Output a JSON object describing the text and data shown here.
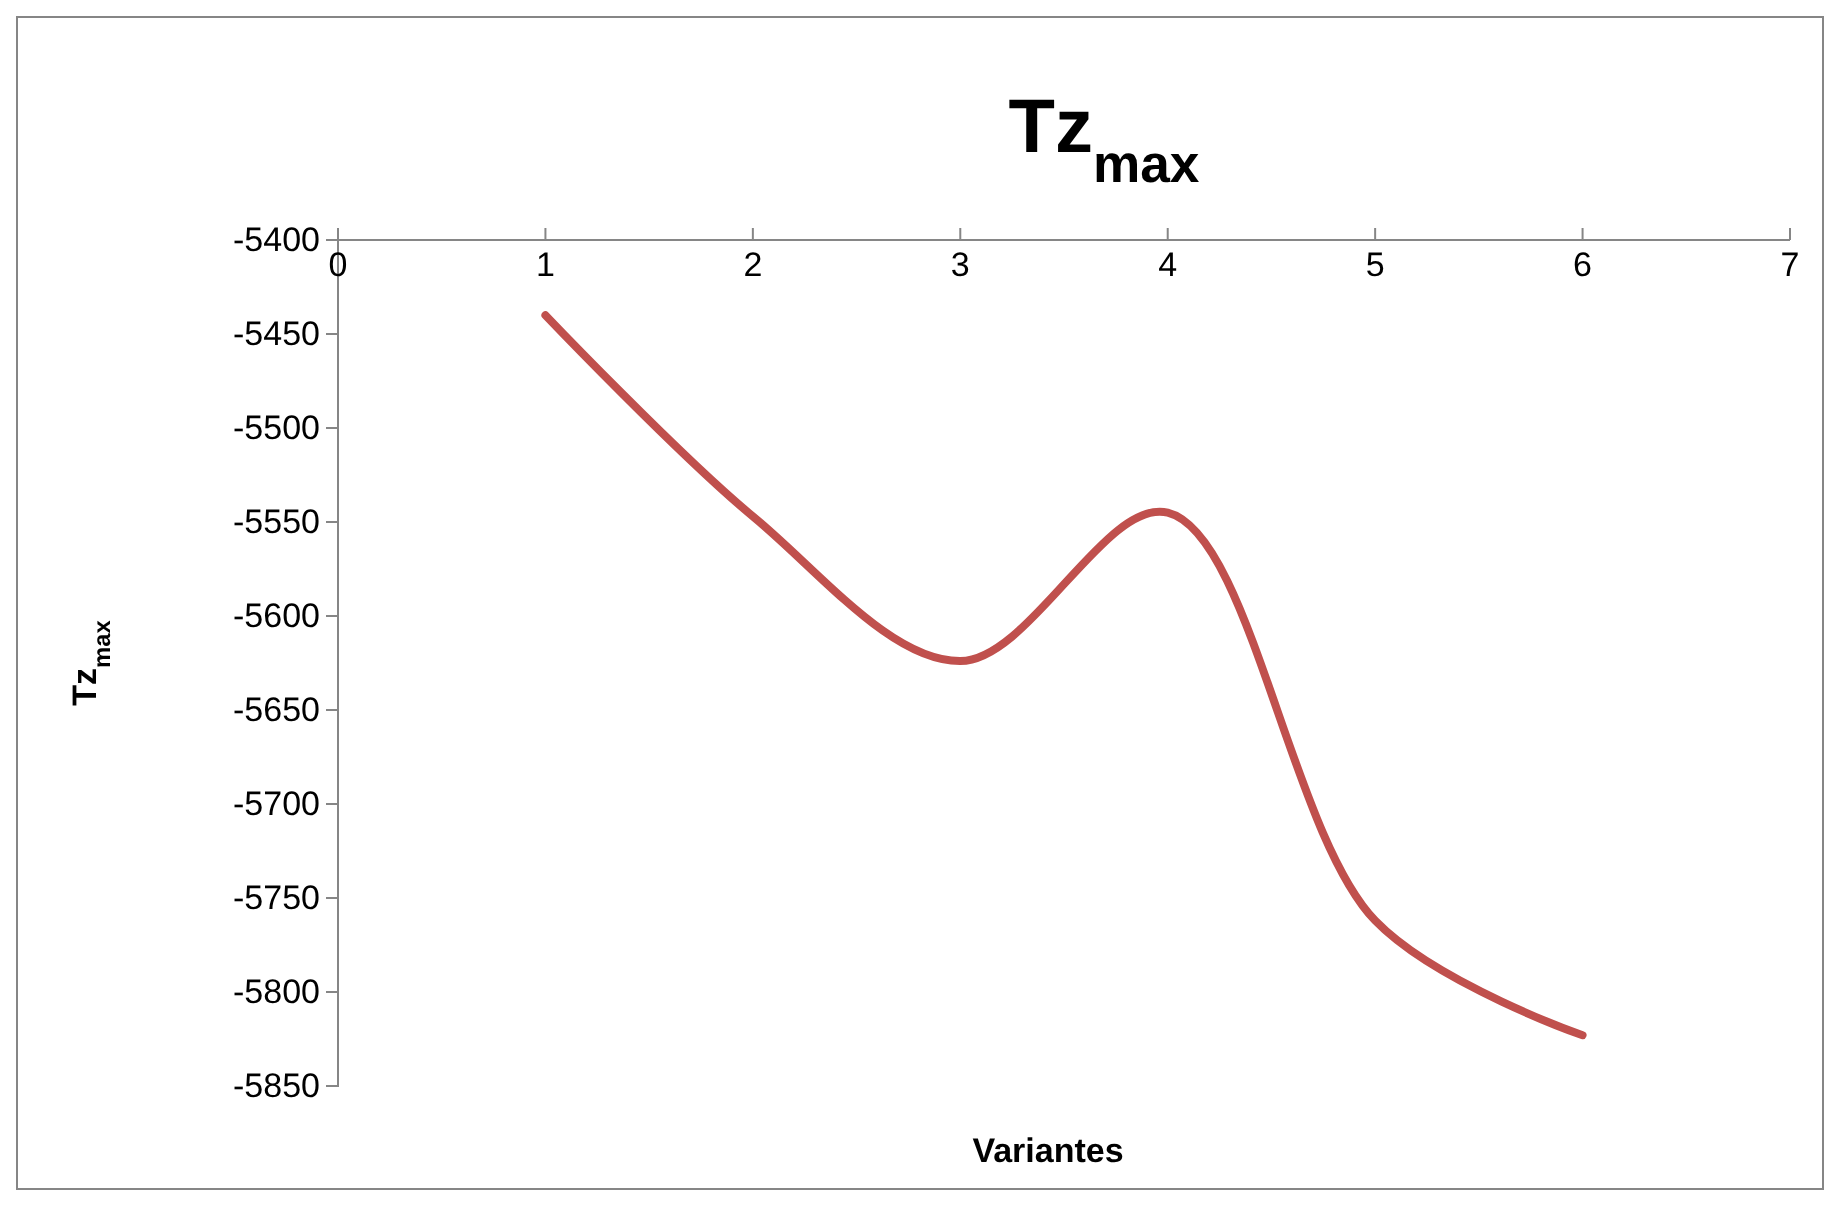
{
  "chart_data": {
    "type": "line",
    "title": "Tz$_{max}$",
    "xlabel": "Variantes",
    "ylabel": "Tz$_{max}$",
    "x": [
      1,
      2,
      3,
      4,
      5,
      6
    ],
    "series": [
      {
        "color": "#c0504d",
        "values": [
          -5440,
          -5547,
          -5624,
          -5545,
          -5762,
          -5823
        ]
      }
    ],
    "xlim": [
      0,
      7
    ],
    "xticks": [
      0,
      1,
      2,
      3,
      4,
      5,
      6,
      7
    ],
    "ylim": [
      -5850,
      -5400
    ],
    "yticks": [
      -5850,
      -5800,
      -5750,
      -5700,
      -5650,
      -5600,
      -5550,
      -5500,
      -5450,
      -5400
    ],
    "grid": false,
    "marker": "none",
    "line_style": "solid"
  }
}
